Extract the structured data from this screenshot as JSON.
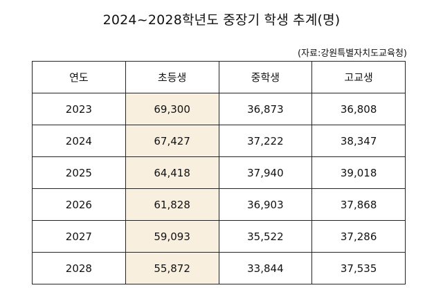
{
  "title": "2024~2028학년도 중장기 학생 추계(명)",
  "source": "(자료:강원특별자치도교육청)",
  "highlight_color": "#f8efde",
  "table": {
    "headers": [
      "연도",
      "초등생",
      "중학생",
      "고교생"
    ],
    "rows": [
      [
        "2023",
        "69,300",
        "36,873",
        "36,808"
      ],
      [
        "2024",
        "67,427",
        "37,222",
        "38,347"
      ],
      [
        "2025",
        "64,418",
        "37,940",
        "39,018"
      ],
      [
        "2026",
        "61,828",
        "36,903",
        "37,868"
      ],
      [
        "2027",
        "59,093",
        "35,522",
        "37,286"
      ],
      [
        "2028",
        "55,872",
        "33,844",
        "37,535"
      ]
    ]
  },
  "chart_data": {
    "type": "table",
    "title": "2024~2028학년도 중장기 학생 추계(명)",
    "columns": [
      "연도",
      "초등생",
      "중학생",
      "고교생"
    ],
    "x": [
      2023,
      2024,
      2025,
      2026,
      2027,
      2028
    ],
    "series": [
      {
        "name": "초등생",
        "values": [
          69300,
          67427,
          64418,
          61828,
          59093,
          55872
        ]
      },
      {
        "name": "중학생",
        "values": [
          36873,
          37222,
          37940,
          36903,
          35522,
          33844
        ]
      },
      {
        "name": "고교생",
        "values": [
          36808,
          38347,
          39018,
          37868,
          37286,
          37535
        ]
      }
    ]
  }
}
